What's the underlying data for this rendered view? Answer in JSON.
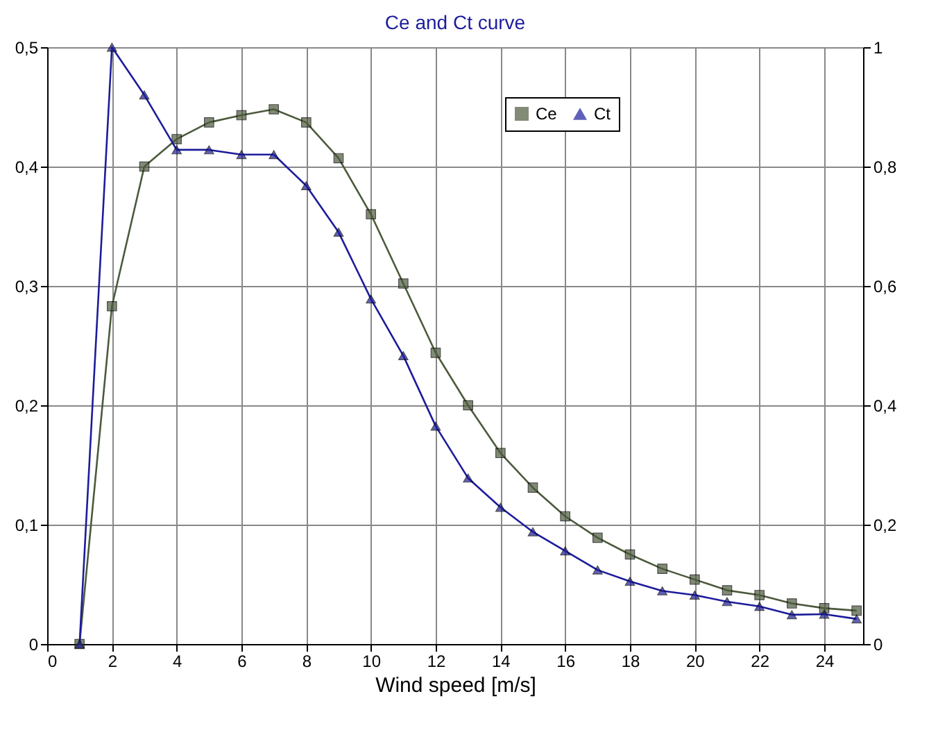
{
  "chart_data": {
    "type": "line",
    "title": "Ce and Ct curve",
    "xlabel": "Wind speed [m/s]",
    "x": [
      1,
      2,
      3,
      4,
      5,
      6,
      7,
      8,
      9,
      10,
      11,
      12,
      13,
      14,
      15,
      16,
      17,
      18,
      19,
      20,
      21,
      22,
      23,
      24,
      25
    ],
    "xlim": [
      0,
      25.2
    ],
    "xticks": [
      0,
      2,
      4,
      6,
      8,
      10,
      12,
      14,
      16,
      18,
      20,
      22,
      24
    ],
    "ylim": [
      0,
      0.5
    ],
    "yticks": [
      0,
      {
        "value": 0.1,
        "label": "0,1"
      },
      {
        "value": 0.2,
        "label": "0,2"
      },
      {
        "value": 0.3,
        "label": "0,3"
      },
      {
        "value": 0.4,
        "label": "0,4"
      },
      {
        "value": 0.5,
        "label": "0,5"
      }
    ],
    "y2lim": [
      0,
      1
    ],
    "y2ticks": [
      0,
      {
        "value": 0.2,
        "label": "0,2"
      },
      {
        "value": 0.4,
        "label": "0,4"
      },
      {
        "value": 0.6,
        "label": "0,6"
      },
      {
        "value": 0.8,
        "label": "0,8"
      },
      1
    ],
    "series": [
      {
        "name": "Ce",
        "color": "#4b5a3c",
        "marker": "square",
        "values": [
          0,
          0.283,
          0.4,
          0.423,
          0.437,
          0.443,
          0.448,
          0.437,
          0.407,
          0.36,
          0.302,
          0.244,
          0.2,
          0.16,
          0.131,
          0.107,
          0.089,
          0.075,
          0.063,
          0.054,
          0.045,
          0.041,
          0.034,
          0.03,
          0.028
        ]
      },
      {
        "name": "Ct",
        "color": "#1c1c9c",
        "marker": "triangle",
        "axis": "y2",
        "values": [
          0,
          1.0,
          0.92,
          0.828,
          0.828,
          0.82,
          0.82,
          0.768,
          0.69,
          0.578,
          0.483,
          0.365,
          0.278,
          0.229,
          0.188,
          0.156,
          0.124,
          0.105,
          0.089,
          0.082,
          0.071,
          0.063,
          0.049,
          0.05,
          0.042
        ]
      }
    ],
    "grid": true,
    "legend": "top right",
    "line_style": "solid"
  }
}
